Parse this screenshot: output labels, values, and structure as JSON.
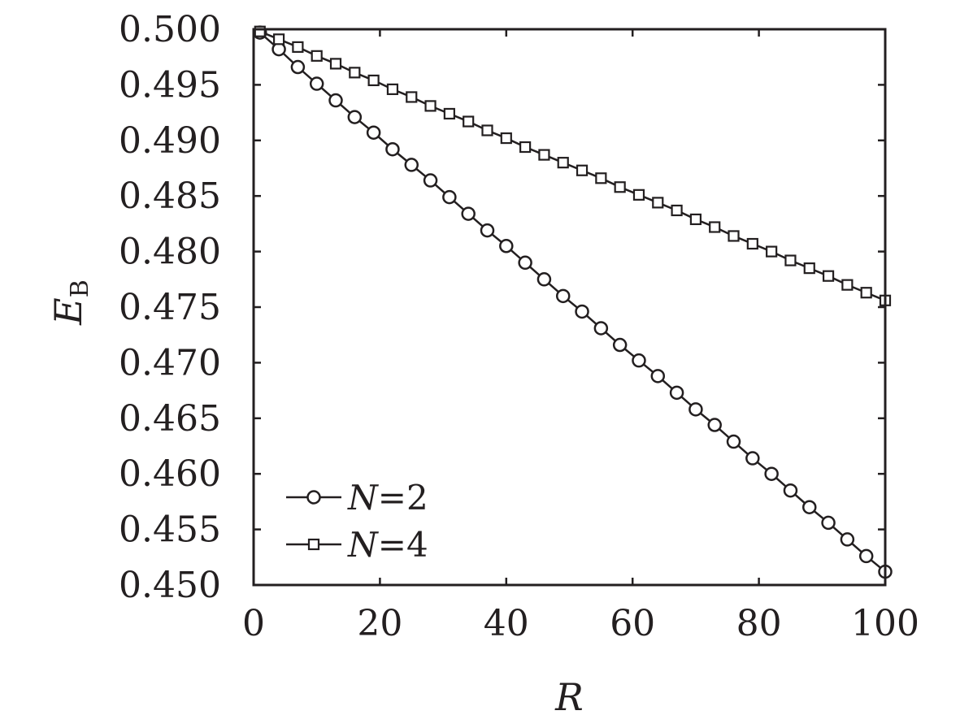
{
  "chart_data": {
    "type": "line",
    "xlabel": "R",
    "ylabel": "E",
    "ylabel_sub": "B",
    "xlim": [
      0,
      100
    ],
    "ylim": [
      0.45,
      0.5
    ],
    "xticks": [
      0,
      20,
      40,
      60,
      80,
      100
    ],
    "xtick_labels": [
      "0",
      "20",
      "40",
      "60",
      "80",
      "100"
    ],
    "yticks": [
      0.45,
      0.455,
      0.46,
      0.465,
      0.47,
      0.475,
      0.48,
      0.485,
      0.49,
      0.495,
      0.5
    ],
    "ytick_labels": [
      "0.450",
      "0.455",
      "0.460",
      "0.465",
      "0.470",
      "0.475",
      "0.480",
      "0.485",
      "0.490",
      "0.495",
      "0.500"
    ],
    "grid": false,
    "legend_position": "bottom-left",
    "line_color": "#231f20",
    "series": [
      {
        "name_italic": "N",
        "name_rest": "=2",
        "marker": "circle",
        "x": [
          1,
          4,
          7,
          10,
          13,
          16,
          19,
          22,
          25,
          28,
          31,
          34,
          37,
          40,
          43,
          46,
          49,
          52,
          55,
          58,
          61,
          64,
          67,
          70,
          73,
          76,
          79,
          82,
          85,
          88,
          91,
          94,
          97,
          100
        ],
        "y": [
          0.4997,
          0.4982,
          0.4966,
          0.4951,
          0.4936,
          0.4921,
          0.4907,
          0.4892,
          0.4878,
          0.4864,
          0.4849,
          0.4834,
          0.4819,
          0.4805,
          0.479,
          0.4775,
          0.476,
          0.4746,
          0.4731,
          0.4716,
          0.4702,
          0.4688,
          0.4673,
          0.4658,
          0.4644,
          0.4629,
          0.4614,
          0.46,
          0.4585,
          0.457,
          0.4556,
          0.4541,
          0.4526,
          0.4512
        ]
      },
      {
        "name_italic": "N",
        "name_rest": "=4",
        "marker": "square",
        "x": [
          1,
          4,
          7,
          10,
          13,
          16,
          19,
          22,
          25,
          28,
          31,
          34,
          37,
          40,
          43,
          46,
          49,
          52,
          55,
          58,
          61,
          64,
          67,
          70,
          73,
          76,
          79,
          82,
          85,
          88,
          91,
          94,
          97,
          100
        ],
        "y": [
          0.4998,
          0.4991,
          0.4984,
          0.4976,
          0.4969,
          0.4961,
          0.4954,
          0.4946,
          0.4939,
          0.4931,
          0.4924,
          0.4917,
          0.4909,
          0.4902,
          0.4894,
          0.4887,
          0.488,
          0.4873,
          0.4866,
          0.4858,
          0.4851,
          0.4844,
          0.4837,
          0.4829,
          0.4822,
          0.4814,
          0.4807,
          0.48,
          0.4792,
          0.4785,
          0.4778,
          0.477,
          0.4763,
          0.4756
        ]
      }
    ]
  }
}
